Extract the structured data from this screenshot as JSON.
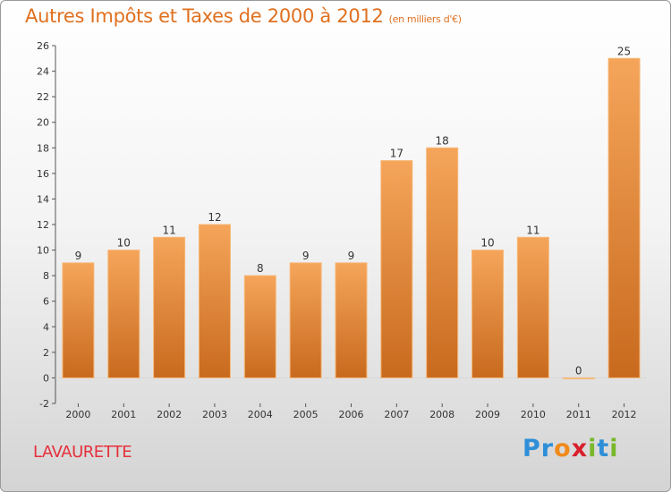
{
  "chart_title": "Autres Impôts et Taxes de 2000 à 2012",
  "chart_unit": "(en milliers d'€)",
  "commune": "LAVAURETTE",
  "logo": {
    "text": "Proxiti",
    "letter_colors": [
      "#2e8fd8",
      "#2e8fd8",
      "#f08a1c",
      "#d8202c",
      "#78b82a",
      "#2e8fd8",
      "#78b82a"
    ]
  },
  "colors": {
    "title": "#e07020",
    "commune": "#e6303c",
    "bar_light": "#f5a55a",
    "bar_dark": "#c86a1e",
    "bar_edge": "#f7b878"
  },
  "chart_data": {
    "type": "bar",
    "categories": [
      "2000",
      "2001",
      "2002",
      "2003",
      "2004",
      "2005",
      "2006",
      "2007",
      "2008",
      "2009",
      "2010",
      "2011",
      "2012"
    ],
    "values": [
      9,
      10,
      11,
      12,
      8,
      9,
      9,
      17,
      18,
      10,
      11,
      0,
      25
    ],
    "data_labels": [
      "9",
      "10",
      "11",
      "12",
      "8",
      "9",
      "9",
      "17",
      "18",
      "10",
      "11",
      "0",
      "25"
    ],
    "y_ticks": [
      "-2",
      "0",
      "2",
      "4",
      "6",
      "8",
      "10",
      "12",
      "14",
      "16",
      "18",
      "20",
      "22",
      "24",
      "26"
    ],
    "ylim": [
      -2,
      26
    ],
    "grid": false,
    "legend": "none"
  }
}
